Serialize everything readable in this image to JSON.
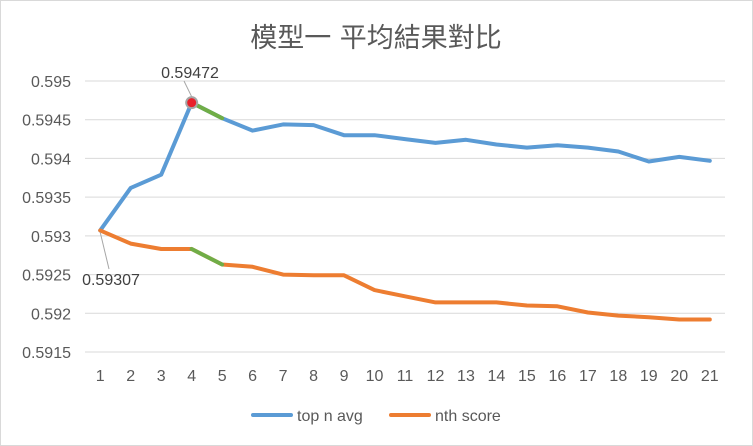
{
  "chart_data": {
    "type": "line",
    "title": "模型一 平均結果對比",
    "xlabel": "",
    "ylabel": "",
    "x": [
      1,
      2,
      3,
      4,
      5,
      6,
      7,
      8,
      9,
      10,
      11,
      12,
      13,
      14,
      15,
      16,
      17,
      18,
      19,
      20,
      21
    ],
    "ylim": [
      0.5915,
      0.595
    ],
    "yticks": [
      "0.5915",
      "0.592",
      "0.5925",
      "0.593",
      "0.5935",
      "0.594",
      "0.5945",
      "0.595"
    ],
    "grid": true,
    "legend_position": "bottom",
    "series": [
      {
        "name": "top n avg",
        "color": "#5b9bd5",
        "values": [
          0.59307,
          0.59362,
          0.59379,
          0.59472,
          0.59452,
          0.59436,
          0.59444,
          0.59443,
          0.5943,
          0.5943,
          0.59425,
          0.5942,
          0.59424,
          0.59418,
          0.59414,
          0.59417,
          0.59414,
          0.59409,
          0.59396,
          0.59402,
          0.59397
        ]
      },
      {
        "name": "nth score",
        "color": "#ed7d31",
        "values": [
          0.59307,
          0.5929,
          0.59283,
          0.59283,
          0.59263,
          0.5926,
          0.5925,
          0.59249,
          0.59249,
          0.5923,
          0.59222,
          0.59214,
          0.59214,
          0.59214,
          0.5921,
          0.59209,
          0.59201,
          0.59197,
          0.59195,
          0.59192,
          0.59192
        ]
      }
    ],
    "highlight_segment": {
      "from_x": 4,
      "to_x": 5,
      "color": "#70ad47"
    },
    "highlight_point": {
      "x": 4,
      "series": "top n avg",
      "color": "#e8202a"
    },
    "annotations": [
      {
        "text": "0.59472",
        "x": 4,
        "series": "top n avg"
      },
      {
        "text": "0.59307",
        "x": 1,
        "series": "nth score"
      }
    ]
  }
}
